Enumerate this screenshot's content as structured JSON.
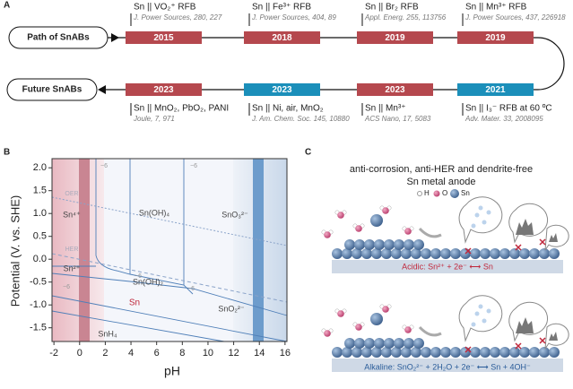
{
  "panel_a": {
    "label": "A",
    "path_label": "Path of SnABs",
    "future_label": "Future SnABs",
    "path": [
      {
        "year": "2015",
        "color": "#b5484e",
        "system": "Sn || VO₂⁺ RFB",
        "citation": "J. Power Sources, 280, 227"
      },
      {
        "year": "2018",
        "color": "#b5484e",
        "system": "Sn || Fe³⁺ RFB",
        "citation": "J. Power Sources, 404, 89"
      },
      {
        "year": "2019",
        "color": "#b5484e",
        "system": "Sn || Br₂ RFB",
        "citation": "Appl. Energ. 255, 113756"
      },
      {
        "year": "2019",
        "color": "#b5484e",
        "system": "Sn || Mn³⁺ RFB",
        "citation": "J. Power Sources, 437, 226918"
      }
    ],
    "future": [
      {
        "year": "2023",
        "color": "#b5484e",
        "system": "Sn || MnO₂, PbO₂, PANI",
        "citation": "Joule, 7, 971"
      },
      {
        "year": "2023",
        "color": "#1b8fba",
        "system": "Sn || Ni, air, MnO₂",
        "citation": "J. Am. Chem. Soc. 145, 10880"
      },
      {
        "year": "2023",
        "color": "#b5484e",
        "system": "Sn || Mn³⁺",
        "citation": "ACS Nano, 17, 5083"
      },
      {
        "year": "2021",
        "color": "#1b8fba",
        "system": "Sn || I₃⁻ RFB at 60 ºC",
        "citation": "Adv. Mater. 33, 2008095"
      }
    ]
  },
  "panel_b": {
    "label": "B",
    "xlabel": "pH",
    "ylabel": "Potential (V. vs. SHE)",
    "xlim": [
      -2.15,
      16.15
    ],
    "ylim": [
      -1.8,
      2.2
    ],
    "xticks": [
      -2,
      0,
      2,
      4,
      6,
      8,
      10,
      12,
      14,
      16
    ],
    "yticks": [
      {
        "value": -1.5,
        "label": "-1.5"
      },
      {
        "value": -1,
        "label": "-1.0"
      },
      {
        "value": -0.5,
        "label": "-0.5"
      },
      {
        "value": 0,
        "label": "0.0"
      },
      {
        "value": 0.5,
        "label": "0.5"
      },
      {
        "value": 1,
        "label": "1.0"
      },
      {
        "value": 1.5,
        "label": "1.5"
      },
      {
        "value": 2,
        "label": "2.0"
      }
    ],
    "regions": [
      "Sn⁴⁺",
      "Sn(OH)₄",
      "SnO₃²⁻",
      "OER",
      "HER",
      "Sn²⁺",
      "Sn(OH)₂",
      "SnO₂²⁻",
      "Sn",
      "SnH₄"
    ],
    "contour_label": "−6"
  },
  "panel_c": {
    "label": "C",
    "title": [
      "anti-corrosion, anti-HER and dendrite-free",
      "Sn metal anode"
    ],
    "legend": [
      "H",
      "O",
      "Sn"
    ],
    "acidic": "Acidic:  Sn²⁺ + 2e⁻ ⟷ Sn",
    "alkaline": "Alkaline: SnO₂²⁻ + 2H₂O + 2e⁻ ⟷ Sn + 4OH⁻"
  }
}
